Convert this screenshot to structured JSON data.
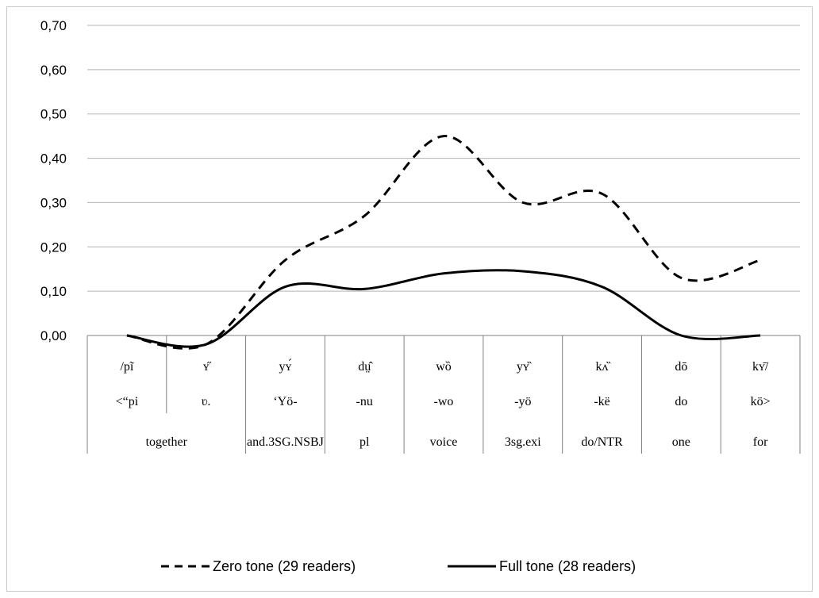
{
  "chart_data": {
    "type": "line",
    "title": "",
    "xlabel": "",
    "ylabel": "",
    "ylim": [
      0,
      0.7
    ],
    "yticks": [
      "0,00",
      "0,10",
      "0,20",
      "0,30",
      "0,40",
      "0,50",
      "0,60",
      "0,70"
    ],
    "categories": [
      {
        "row1": "/pĩ",
        "row2": "<“pi",
        "row3": "together"
      },
      {
        "row1": "ʏ̋",
        "row2": "ʋ.",
        "row3": ""
      },
      {
        "row1": "yʏ́",
        "row2": "‘Yö-",
        "row3": "and.3SG.NSBJ"
      },
      {
        "row1": "dṳ̂",
        "row2": "-nu",
        "row3": "pl"
      },
      {
        "row1": "wȍ",
        "row2": "-wo",
        "row3": "voice"
      },
      {
        "row1": "yʏ̏",
        "row2": "-yö",
        "row3": "3sg.exi"
      },
      {
        "row1": "kʌ̏",
        "row2": "-kë",
        "row3": "do/NTR"
      },
      {
        "row1": "dō",
        "row2": "do",
        "row3": "one"
      },
      {
        "row1": "kʏ̄/",
        "row2": "kö>",
        "row3": "for"
      }
    ],
    "series": [
      {
        "name": "Zero tone (29 readers)",
        "style": "dashed",
        "color": "#000000",
        "values": [
          0.0,
          -0.02,
          0.17,
          0.27,
          0.45,
          0.3,
          0.32,
          0.13,
          0.17
        ]
      },
      {
        "name": "Full tone (28 readers)",
        "style": "solid",
        "color": "#000000",
        "values": [
          0.0,
          -0.02,
          0.11,
          0.105,
          0.14,
          0.145,
          0.11,
          0.0,
          0.0
        ]
      }
    ],
    "grid": true,
    "legend_position": "bottom"
  }
}
